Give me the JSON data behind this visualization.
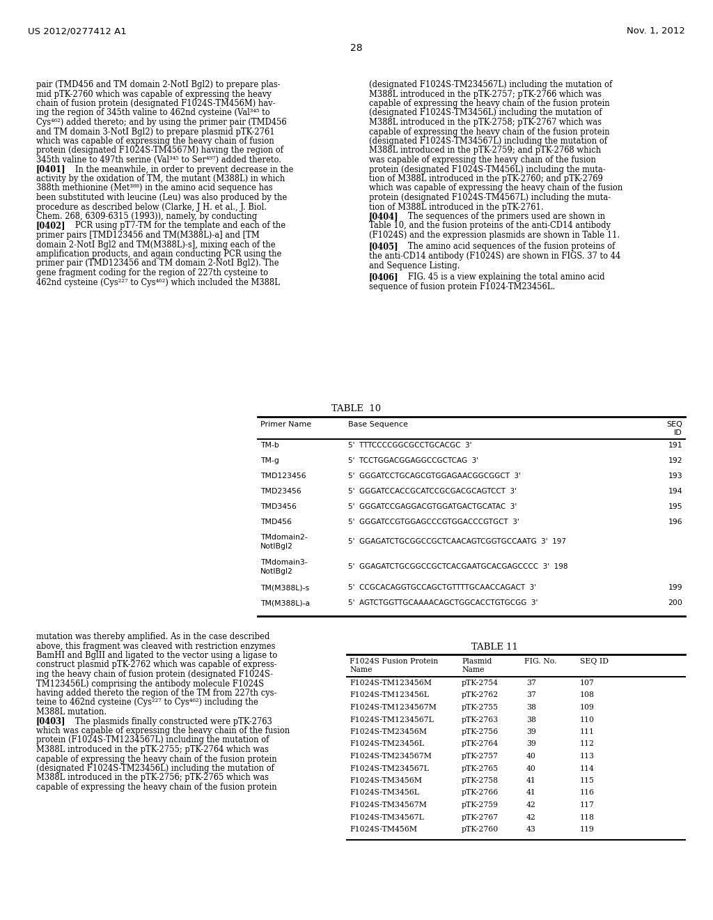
{
  "page_header_left": "US 2012/0277412 A1",
  "page_header_right": "Nov. 1, 2012",
  "page_number": "28",
  "background_color": "#ffffff",
  "body_text_left_top": [
    "pair (TMD456 and TM domain 2-NotI Bgl2) to prepare plas-",
    "mid pTK-2760 which was capable of expressing the heavy",
    "chain of fusion protein (designated F1024S-TM456M) hav-",
    "ing the region of 345th valine to 462nd cysteine (Val³⁴⁵ to",
    "Cys⁴⁶²) added thereto; and by using the primer pair (TMD456",
    "and TM domain 3-NotI Bgl2) to prepare plasmid pTK-2761",
    "which was capable of expressing the heavy chain of fusion",
    "protein (designated F1024S-TM4567M) having the region of",
    "345th valine to 497th serine (Val³⁴⁵ to Ser⁴⁹⁷) added thereto."
  ],
  "body_para_0401": "[0401]",
  "body_para_0401_text": [
    "   In the meanwhile, in order to prevent decrease in the",
    "activity by the oxidation of TM, the mutant (M388L) in which",
    "388th methionine (Met³⁸⁸) in the amino acid sequence has",
    "been substituted with leucine (Leu) was also produced by the",
    "procedure as described below (Clarke, J H. et al., J. Biol.",
    "Chem. 268, 6309-6315 (1993)), namely, by conducting"
  ],
  "body_para_0402": "[0402]",
  "body_para_0402_text": [
    "   PCR using pT7-TM for the template and each of the",
    "primer pairs [TMD123456 and TM(M388L)-a] and [TM",
    "domain 2-NotI Bgl2 and TM(M388L)-s], mixing each of the",
    "amplification products, and again conducting PCR using the",
    "primer pair (TMD123456 and TM domain 2-NotI Bgl2). The",
    "gene fragment coding for the region of 227th cysteine to",
    "462nd cysteine (Cys²²⁷ to Cys⁴⁶²) which included the M388L"
  ],
  "body_text_right_top": [
    "(designated F1024S-TM234567L) including the mutation of",
    "M388L introduced in the pTK-2757; pTK-2766 which was",
    "capable of expressing the heavy chain of the fusion protein",
    "(designated F1024S-TM3456L) including the mutation of",
    "M388L introduced in the pTK-2758; pTK-2767 which was",
    "capable of expressing the heavy chain of the fusion protein",
    "(designated F1024S-TM34567L) including the mutation of",
    "M388L introduced in the pTK-2759; and pTK-2768 which",
    "was capable of expressing the heavy chain of the fusion",
    "protein (designated F1024S-TM456L) including the muta-",
    "tion of M388L introduced in the pTK-2760; and pTK-2769",
    "which was capable of expressing the heavy chain of the fusion",
    "protein (designated F1024S-TM4567L) including the muta-",
    "tion of M388L introduced in the pTK-2761."
  ],
  "body_para_0404": "[0404]",
  "body_para_0404_text": [
    "   The sequences of the primers used are shown in",
    "Table 10, and the fusion proteins of the anti-CD14 antibody",
    "(F1024S) and the expression plasmids are shown in Table 11."
  ],
  "body_para_0405": "[0405]",
  "body_para_0405_text": [
    "   The amino acid sequences of the fusion proteins of",
    "the anti-CD14 antibody (F1024S) are shown in FIGS. 37 to 44",
    "and Sequence Listing."
  ],
  "body_para_0406": "[0406]",
  "body_para_0406_text": [
    "   FIG. 45 is a view explaining the total amino acid",
    "sequence of fusion protein F1024-TM23456L."
  ],
  "table10_title": "TABLE  10",
  "table10_rows": [
    [
      "TM-b",
      "5'  TTTCCCCGGCGCCTGCACGC  3'",
      "191"
    ],
    [
      "TM-g",
      "5'  TCCTGGACGGAGGCCGCTCAG  3'",
      "192"
    ],
    [
      "TMD123456",
      "5'  GGGATCCTGCAGCGTGGAGAACGGCGGCT  3'",
      "193"
    ],
    [
      "TMD23456",
      "5'  GGGATCCACCGCATCCGCGACGCAGTCCT  3'",
      "194"
    ],
    [
      "TMD3456",
      "5'  GGGATCCGAGGACGTGGATGACTGCATAC  3'",
      "195"
    ],
    [
      "TMD456",
      "5'  GGGATCCGTGGAGCCCGTGGACCCGTGCT  3'",
      "196"
    ],
    [
      "TMdomain2-\nNotIBgl2",
      "5'  GGAGATCTGCGGCCGCTCAACAGTCGGTGCCAATG  3'  197",
      ""
    ],
    [
      "TMdomain3-\nNotIBgl2",
      "5'  GGAGATCTGCGGCCGCTCACGAATGCACGAGCCCC  3'  198",
      ""
    ],
    [
      "TM(M388L)-s",
      "5'  CCGCACAGGTGCCAGCTGTTTTGCAACCAGACT  3'",
      "199"
    ],
    [
      "TM(M388L)-a",
      "5'  AGTCTGGTTGCAAAACAGCTGGCACCTGTGCGG  3'",
      "200"
    ]
  ],
  "body_text_left_bot": [
    "mutation was thereby amplified. As in the case described",
    "above, this fragment was cleaved with restriction enzymes",
    "BamHI and BglII and ligated to the vector using a ligase to",
    "construct plasmid pTK-2762 which was capable of express-",
    "ing the heavy chain of fusion protein (designated F1024S-",
    "TM123456L) comprising the antibody molecule F1024S",
    "having added thereto the region of the TM from 227th cys-",
    "teine to 462nd cysteine (Cys²²⁷ to Cys⁴⁶²) including the",
    "M388L mutation."
  ],
  "body_para_0403": "[0403]",
  "body_para_0403_text": [
    "   The plasmids finally constructed were pTK-2763",
    "which was capable of expressing the heavy chain of the fusion",
    "protein (F1024S-TM1234567L) including the mutation of",
    "M388L introduced in the pTK-2755; pTK-2764 which was",
    "capable of expressing the heavy chain of the fusion protein",
    "(designated F1024S-TM23456L) including the mutation of",
    "M388L introduced in the pTK-2756; pTK-2765 which was",
    "capable of expressing the heavy chain of the fusion protein"
  ],
  "table11_title": "TABLE 11",
  "table11_rows": [
    [
      "F1024S-TM123456M",
      "pTK-2754",
      "37",
      "107"
    ],
    [
      "F1024S-TM123456L",
      "pTK-2762",
      "37",
      "108"
    ],
    [
      "F1024S-TM1234567M",
      "pTK-2755",
      "38",
      "109"
    ],
    [
      "F1024S-TM1234567L",
      "pTK-2763",
      "38",
      "110"
    ],
    [
      "F1024S-TM23456M",
      "pTK-2756",
      "39",
      "111"
    ],
    [
      "F1024S-TM23456L",
      "pTK-2764",
      "39",
      "112"
    ],
    [
      "F1024S-TM234567M",
      "pTK-2757",
      "40",
      "113"
    ],
    [
      "F1024S-TM234567L",
      "pTK-2765",
      "40",
      "114"
    ],
    [
      "F1024S-TM3456M",
      "pTK-2758",
      "41",
      "115"
    ],
    [
      "F1024S-TM3456L",
      "pTK-2766",
      "41",
      "116"
    ],
    [
      "F1024S-TM34567M",
      "pTK-2759",
      "42",
      "117"
    ],
    [
      "F1024S-TM34567L",
      "pTK-2767",
      "42",
      "118"
    ],
    [
      "F1024S-TM456M",
      "pTK-2760",
      "43",
      "119"
    ]
  ]
}
